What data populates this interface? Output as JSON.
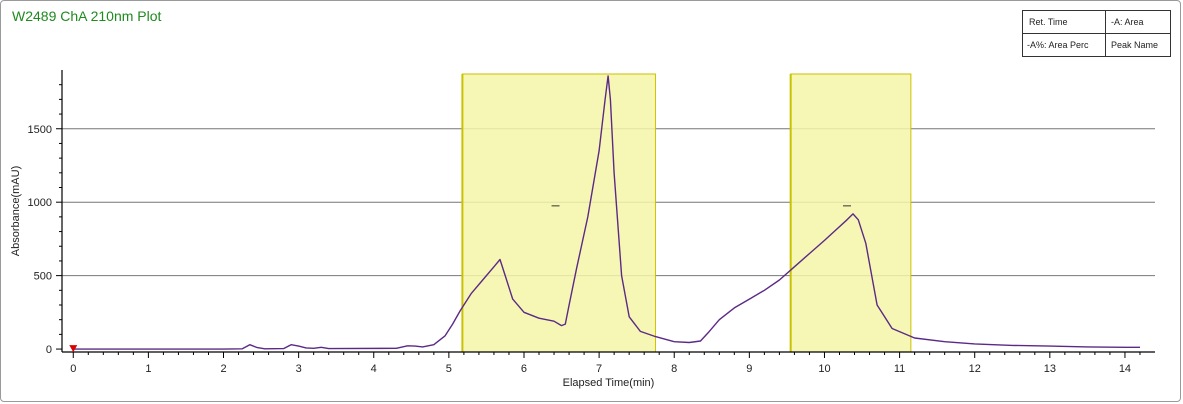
{
  "title": "W2489 ChA 210nm Plot",
  "legend": {
    "cells": [
      "Ret. Time",
      "-A: Area",
      "-A%: Area Perc",
      "Peak Name"
    ]
  },
  "colors": {
    "title": "#1f8a1f",
    "trace": "#5b2a86",
    "peak_band_fill": "#f6f6a8",
    "peak_band_edge": "#c9c200",
    "grid": "#777777",
    "marker": "#dd0000"
  },
  "chart_data": {
    "type": "line",
    "title": "W2489 ChA 210nm Plot",
    "xlabel": "Elapsed Time(min)",
    "ylabel": "Absorbance(mAU)",
    "xlim": [
      -0.15,
      14.4
    ],
    "ylim": [
      -20,
      1900
    ],
    "x_ticks": [
      0,
      1,
      2,
      3,
      4,
      5,
      6,
      7,
      8,
      9,
      10,
      11,
      12,
      13,
      14
    ],
    "y_ticks": [
      0,
      500,
      1000,
      1500
    ],
    "grid": "horizontal",
    "series": [
      {
        "x": [
          0,
          1,
          2,
          2.25,
          2.35,
          2.45,
          2.55,
          2.8,
          2.9,
          3.0,
          3.1,
          3.2,
          3.3,
          3.4,
          4.3,
          4.45,
          4.55,
          4.65,
          4.8,
          4.95,
          5.05,
          5.15,
          5.3,
          5.45,
          5.6,
          5.68,
          5.75,
          5.85,
          6.0,
          6.2,
          6.4,
          6.5,
          6.55,
          6.6,
          6.7,
          6.85,
          7.0,
          7.08,
          7.12,
          7.15,
          7.2,
          7.3,
          7.4,
          7.55,
          7.75,
          8.0,
          8.2,
          8.35,
          8.45,
          8.6,
          8.8,
          9.0,
          9.2,
          9.4,
          9.6,
          9.8,
          10.0,
          10.15,
          10.3,
          10.38,
          10.45,
          10.55,
          10.7,
          10.9,
          11.2,
          11.6,
          12.0,
          12.5,
          13.0,
          13.5,
          14.0,
          14.2
        ],
        "y": [
          0,
          0,
          0,
          2,
          30,
          10,
          2,
          3,
          30,
          20,
          8,
          5,
          12,
          3,
          5,
          22,
          20,
          15,
          30,
          90,
          170,
          260,
          380,
          470,
          560,
          610,
          500,
          340,
          250,
          210,
          190,
          160,
          170,
          300,
          550,
          900,
          1350,
          1700,
          1860,
          1700,
          1200,
          500,
          220,
          120,
          85,
          50,
          45,
          55,
          110,
          200,
          280,
          340,
          400,
          470,
          560,
          650,
          740,
          810,
          880,
          920,
          880,
          720,
          300,
          140,
          75,
          50,
          35,
          25,
          20,
          15,
          12,
          12
        ]
      }
    ],
    "peak_windows": [
      {
        "start": 5.18,
        "end": 7.75
      },
      {
        "start": 9.55,
        "end": 11.15
      }
    ],
    "peak_marks": [
      {
        "x": 6.42,
        "y": 975
      },
      {
        "x": 10.3,
        "y": 975
      }
    ],
    "injection_marker": {
      "x": 0,
      "y": 0
    }
  }
}
